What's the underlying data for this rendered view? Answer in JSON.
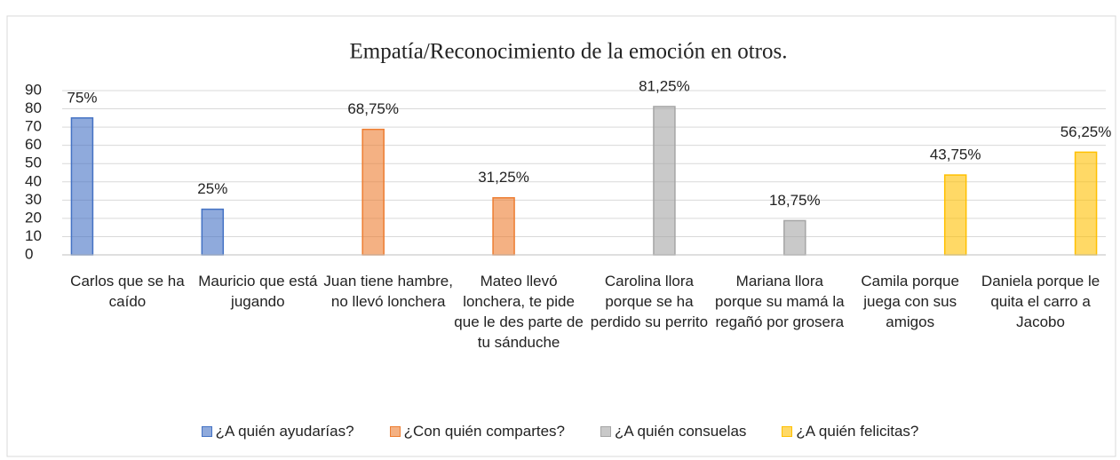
{
  "chart_data": {
    "type": "bar",
    "title": "Empatía/Reconocimiento de la emoción en otros.",
    "categories": [
      "Carlos que se ha caído",
      "Mauricio que está jugando",
      "Juan tiene hambre, no llevó lonchera",
      "Mateo llevó lonchera, te pide que le des parte de tu sánduche",
      "Carolina llora porque se ha perdido su perrito",
      "Mariana llora porque su mamá la regañó por grosera",
      "Camila porque juega con sus amigos",
      "Daniela porque le quita el carro a Jacobo"
    ],
    "series": [
      {
        "name": "¿A quién ayudarías?",
        "color": "#4472c4",
        "values": [
          75,
          25,
          null,
          null,
          null,
          null,
          null,
          null
        ],
        "value_labels": [
          "75%",
          "25%",
          null,
          null,
          null,
          null,
          null,
          null
        ]
      },
      {
        "name": "¿Con quién compartes?",
        "color": "#ed7d31",
        "values": [
          null,
          null,
          68.75,
          31.25,
          null,
          null,
          null,
          null
        ],
        "value_labels": [
          null,
          null,
          "68,75%",
          "31,25%",
          null,
          null,
          null,
          null
        ]
      },
      {
        "name": "¿A quién consuelas",
        "color": "#a5a5a5",
        "values": [
          null,
          null,
          null,
          null,
          81.25,
          18.75,
          null,
          null
        ],
        "value_labels": [
          null,
          null,
          null,
          null,
          "81,25%",
          "18,75%",
          null,
          null
        ]
      },
      {
        "name": "¿A quién felicitas?",
        "color": "#ffc000",
        "values": [
          null,
          null,
          null,
          null,
          null,
          null,
          43.75,
          56.25
        ],
        "value_labels": [
          null,
          null,
          null,
          null,
          null,
          null,
          "43,75%",
          "56,25%"
        ]
      }
    ],
    "ylim": [
      0,
      90
    ],
    "yticks": [
      0,
      10,
      20,
      30,
      40,
      50,
      60,
      70,
      80,
      90
    ],
    "grid": true
  }
}
